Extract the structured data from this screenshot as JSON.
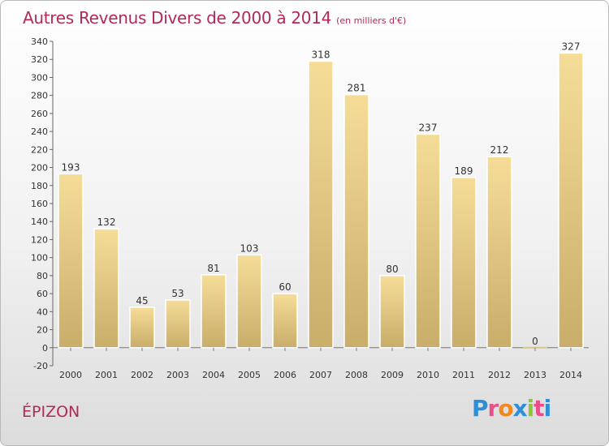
{
  "page": {
    "title": "Autres Revenus Divers de 2000 à 2014",
    "unit": "(en milliers d'€)",
    "location": "ÉPIZON",
    "logo": [
      "P",
      "r",
      "o",
      "x",
      "i",
      "t",
      "i"
    ]
  },
  "colors": {
    "title": "#b3285a",
    "bar_light": "#f5dd98",
    "bar_dark": "#c9ad6a",
    "logo": [
      "#2f8fd6",
      "#e94f8a",
      "#f08a1c",
      "#2f8fd6",
      "#8cc63f",
      "#e94f8a",
      "#2f8fd6"
    ]
  },
  "chart_data": {
    "type": "bar",
    "title": "Autres Revenus Divers de 2000 à 2014",
    "subtitle": "(en milliers d'€)",
    "categories": [
      "2000",
      "2001",
      "2002",
      "2003",
      "2004",
      "2005",
      "2006",
      "2007",
      "2008",
      "2009",
      "2010",
      "2011",
      "2012",
      "2013",
      "2014"
    ],
    "values": [
      193,
      132,
      45,
      53,
      81,
      103,
      60,
      318,
      281,
      80,
      237,
      189,
      212,
      0,
      327
    ],
    "data_labels": [
      "193",
      "132",
      "45",
      "53",
      "81",
      "103",
      "60",
      "318",
      "281",
      "80",
      "237",
      "189",
      "212",
      "0",
      "327"
    ],
    "ylim": [
      -20,
      340
    ],
    "yticks": [
      -20,
      0,
      20,
      40,
      60,
      80,
      100,
      120,
      140,
      160,
      180,
      200,
      220,
      240,
      260,
      280,
      300,
      320,
      340
    ],
    "xlabel": "",
    "ylabel": "",
    "grid": false,
    "legend": "none"
  }
}
